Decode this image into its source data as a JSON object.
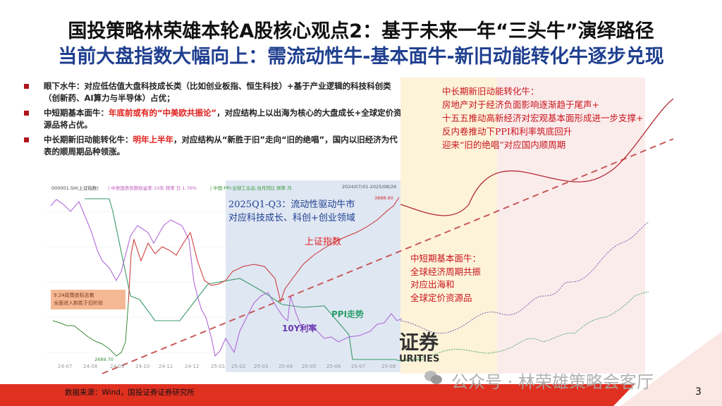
{
  "title": "国投策略林荣雄本轮A股核心观点2：基于未来一年“三头牛”演绎路径",
  "subtitle": "当前大盘指数大幅向上：需流动性牛-基本面牛-新旧动能转化牛逐步兑现",
  "bullets": [
    {
      "head": "眼下水牛：对应低估值大盘科技成长类（比如创业板指、恒生科技）+基于产业逻辑的科技科创类（创新药、AI算力与半导体）占优；",
      "highlight": "",
      "tail": ""
    },
    {
      "head": "中短期基本面牛：",
      "highlight": "年底前或有的“中美欧共振论”",
      "tail": "，对应结构上以出海为核心的大盘成长+全球定价资源品将占优。"
    },
    {
      "head": "中长期新旧动能转化牛：",
      "highlight": "明年上半年",
      "tail": "，对应结构从“新胜于旧”走向“旧的绝唱”，国内以旧经济为代表的顺周期品种领涨。"
    }
  ],
  "chart": {
    "legend_index": "000001.SH(上证指数)",
    "legend_bond": "| 中债国债到期收益率:10年 频率 日 1.76%",
    "legend_ppi": "| 中国:PPI:全部工业品:当月同比 频率 月",
    "date_range": "2024/07/01-2025/08/26",
    "high_label": "3888.60",
    "low_label": "2689.70",
    "q_title": "2025Q1-Q3：流动性驱动牛市",
    "q_sub": "对应科技成长、科创+创业领域",
    "index_label": "上证指数",
    "policy_box": [
      "9.24政策底标志着",
      "全面进入新胜于旧阶段"
    ],
    "ppi_label": "PPI走势",
    "rate_label": "10Y利率",
    "x_ticks": [
      "24-07",
      "24-08",
      "24-09",
      "24-10",
      "24-11",
      "24-12",
      "25-01",
      "25-02",
      "25-03",
      "25-04",
      "25-05",
      "25-06",
      "25-07",
      "25-08"
    ],
    "long_term": [
      "中长期新旧动能转化牛：",
      "房地产对于经济负面影响逐渐趋于尾声+",
      "十五五推动高新经济对宏观基本面形成进一步支撑+",
      "反内卷推动下PPI和利率筑底回升",
      "迎来“旧的绝唱”对应国内顺周期"
    ],
    "mid_term": [
      "中短期基本面牛：",
      "全球经济周期共振",
      "对应出海和",
      "全球定价资源品"
    ]
  },
  "watermark_logo": [
    "证券",
    "URITIES"
  ],
  "watermark_account": "公众号 · 林荣雄策略会客厅",
  "source": "数据来源：Wind，国投证券证券研究所",
  "page_number": "3",
  "colors": {
    "brand_red": "#e03020",
    "title_blue": "#1f3f8f",
    "annotation_red": "#c8141b",
    "ppi_green": "#2a9d6a",
    "rate_purple": "#9a4fd0"
  }
}
